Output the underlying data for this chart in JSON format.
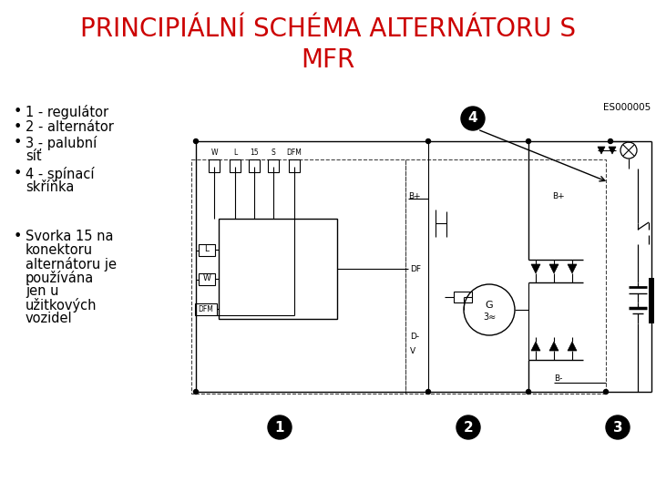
{
  "title_line1": "PRINCIPIÁLNÍ SCHÉMA ALTERNÁTORU S",
  "title_line2": "MFR",
  "title_color": "#cc0000",
  "title_fontsize": 20,
  "bg_color": "#ffffff",
  "bullet_fontsize": 10.5,
  "bullet_color": "#000000",
  "diagram_label": "ES000005",
  "fig_width": 7.2,
  "fig_height": 5.4,
  "dpi": 100
}
